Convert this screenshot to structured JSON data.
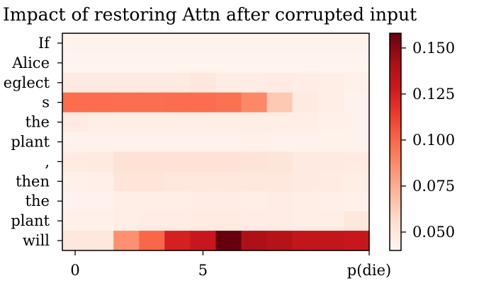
{
  "chart_data": {
    "type": "heatmap",
    "title": "Impact of restoring Attn after corrupted input",
    "y_categories": [
      "If",
      "Alice",
      "eglect",
      "s",
      "the",
      "plant",
      ",",
      "then",
      "the",
      "plant",
      "will"
    ],
    "x_ticks": [
      {
        "value": 0,
        "label": "0"
      },
      {
        "value": 5,
        "label": "5"
      },
      {
        "value": 11.5,
        "label": "p(die)"
      }
    ],
    "x_count": 12,
    "colorbar": {
      "min": 0.04,
      "max": 0.158,
      "ticks": [
        {
          "value": 0.05,
          "label": "0.050"
        },
        {
          "value": 0.075,
          "label": "0.075"
        },
        {
          "value": 0.1,
          "label": "0.100"
        },
        {
          "value": 0.125,
          "label": "0.125"
        },
        {
          "value": 0.15,
          "label": "0.150"
        }
      ]
    },
    "colormap": "Reds",
    "values": [
      [
        0.042,
        0.042,
        0.042,
        0.042,
        0.042,
        0.042,
        0.042,
        0.042,
        0.042,
        0.042,
        0.042,
        0.042
      ],
      [
        0.041,
        0.041,
        0.041,
        0.041,
        0.041,
        0.041,
        0.041,
        0.041,
        0.041,
        0.041,
        0.041,
        0.041
      ],
      [
        0.048,
        0.048,
        0.048,
        0.048,
        0.048,
        0.05,
        0.046,
        0.046,
        0.047,
        0.046,
        0.045,
        0.043
      ],
      [
        0.098,
        0.098,
        0.097,
        0.097,
        0.098,
        0.098,
        0.096,
        0.088,
        0.064,
        0.048,
        0.045,
        0.042
      ],
      [
        0.047,
        0.045,
        0.045,
        0.045,
        0.045,
        0.045,
        0.045,
        0.045,
        0.045,
        0.045,
        0.043,
        0.042
      ],
      [
        0.042,
        0.042,
        0.042,
        0.042,
        0.042,
        0.042,
        0.042,
        0.043,
        0.042,
        0.042,
        0.042,
        0.042
      ],
      [
        0.047,
        0.048,
        0.053,
        0.053,
        0.053,
        0.053,
        0.053,
        0.052,
        0.051,
        0.048,
        0.048,
        0.047
      ],
      [
        0.043,
        0.044,
        0.051,
        0.051,
        0.05,
        0.05,
        0.05,
        0.049,
        0.05,
        0.048,
        0.047,
        0.045
      ],
      [
        0.042,
        0.042,
        0.045,
        0.045,
        0.045,
        0.046,
        0.046,
        0.045,
        0.046,
        0.045,
        0.044,
        0.043
      ],
      [
        0.043,
        0.043,
        0.045,
        0.046,
        0.046,
        0.047,
        0.047,
        0.046,
        0.046,
        0.045,
        0.045,
        0.049
      ],
      [
        0.05,
        0.05,
        0.085,
        0.1,
        0.125,
        0.13,
        0.158,
        0.14,
        0.137,
        0.132,
        0.132,
        0.13
      ]
    ]
  }
}
